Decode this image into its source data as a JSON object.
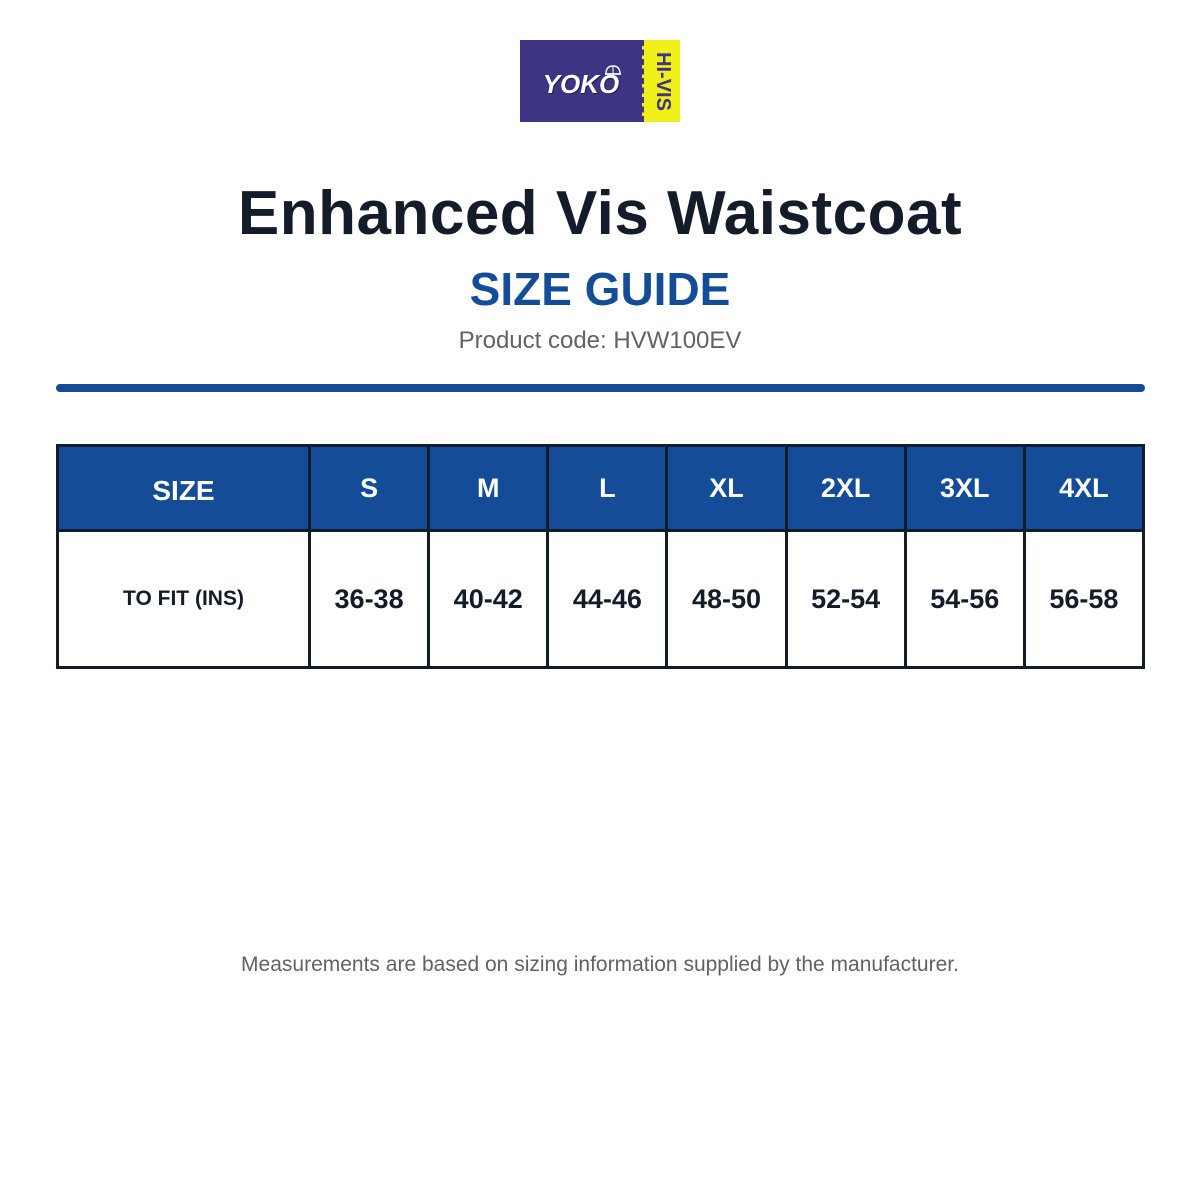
{
  "brand": {
    "logo_text": "YOKO",
    "logo_badge": "HI-VIS",
    "colors": {
      "primary": "#3d3484",
      "accent": "#f0ef1a"
    }
  },
  "header": {
    "product_title": "Enhanced Vis Waistcoat",
    "guide_title": "SIZE GUIDE",
    "product_code": "Product code: HVW100EV"
  },
  "table": {
    "header_row": {
      "label": "SIZE",
      "sizes": [
        "S",
        "M",
        "L",
        "XL",
        "2XL",
        "3XL",
        "4XL"
      ]
    },
    "rows": [
      {
        "label": "TO FIT (INS)",
        "values": [
          "36-38",
          "40-42",
          "44-46",
          "48-50",
          "52-54",
          "54-56",
          "56-58"
        ]
      }
    ]
  },
  "footer": {
    "note": "Measurements are based on sizing information supplied by the manufacturer."
  },
  "theme": {
    "accent_blue": "#144c97",
    "dark_text": "#141b29",
    "muted_text": "#5f6368"
  }
}
